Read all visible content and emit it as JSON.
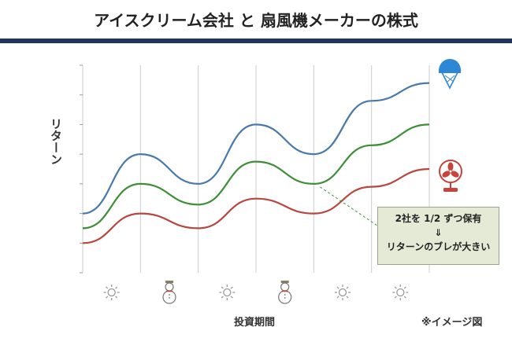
{
  "title": "アイスクリーム会社 と 扇風機メーカーの株式",
  "note": "※イメージ図",
  "callout": {
    "line1": "2社を 1/2 ずつ保有",
    "arrow": "⇓",
    "line2": "リターンのブレが大きい"
  },
  "colors": {
    "title_bar": "#1f3560",
    "ice_cream_line": "#4a78aa",
    "combined_line": "#3d8f37",
    "fan_line": "#b84740",
    "grid": "#cccccc",
    "callout_bg": "#e5ead7",
    "icon_sun": "#999999",
    "ice_cream_icon": "#2e86d6",
    "fan_icon": "#c8433a"
  },
  "icons": {
    "ice_cream_line_end": "ice-cream-icon",
    "fan_line_end": "fan-icon",
    "x_axis_weather": [
      "sun-icon",
      "snowman-icon",
      "sun-icon",
      "snowman-icon",
      "sun-icon",
      "sun-icon"
    ]
  },
  "chart_data": {
    "type": "line",
    "title": "",
    "xlabel": "投資期間",
    "ylabel": "リターン",
    "x": [
      0,
      1,
      2,
      3,
      4,
      5,
      6
    ],
    "xlim": [
      0,
      6
    ],
    "ylim": [
      0,
      7
    ],
    "grid": true,
    "legend": "none",
    "series": [
      {
        "values": [
          2.0,
          4.0,
          3.0,
          5.0,
          4.0,
          5.8,
          6.4
        ]
      },
      {
        "values": [
          1.5,
          3.0,
          2.3,
          3.75,
          3.0,
          4.3,
          5.0
        ]
      },
      {
        "values": [
          1.0,
          2.0,
          1.5,
          2.5,
          2.0,
          2.9,
          3.5
        ]
      }
    ]
  }
}
